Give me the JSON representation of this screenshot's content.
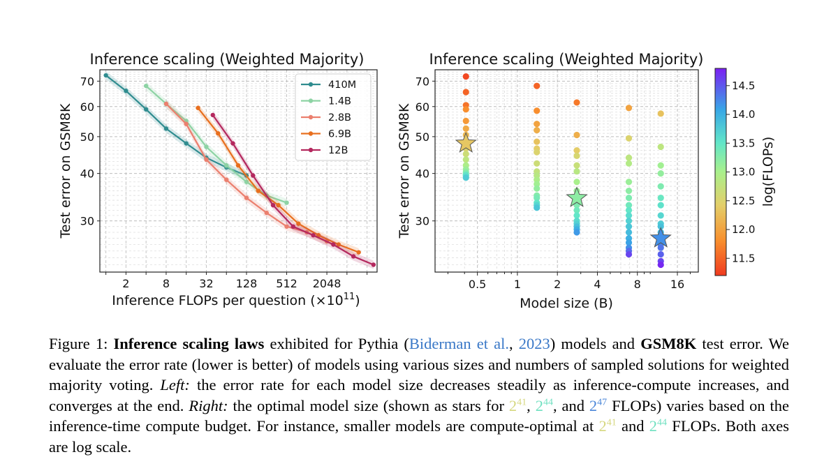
{
  "chart_data": [
    {
      "type": "line",
      "title": "Inference scaling (Weighted Majority)",
      "xlabel": "Inference FLOPs per question (×10",
      "xlabel_sup": "11",
      "xlabel_end": ")",
      "ylabel": "Test error on GSM8K",
      "xscale": "log2",
      "yscale": "log",
      "xlim_log2": [
        -0.3,
        13.5
      ],
      "ylim": [
        22,
        75
      ],
      "xticks": [
        {
          "v": 2,
          "label": "2"
        },
        {
          "v": 8,
          "label": "8"
        },
        {
          "v": 32,
          "label": "32"
        },
        {
          "v": 128,
          "label": "128"
        },
        {
          "v": 512,
          "label": "512"
        },
        {
          "v": 2048,
          "label": "2048"
        }
      ],
      "yticks": [
        {
          "v": 30,
          "label": "30"
        },
        {
          "v": 40,
          "label": "40"
        },
        {
          "v": 50,
          "label": "50"
        },
        {
          "v": 60,
          "label": "60"
        },
        {
          "v": 70,
          "label": "70"
        }
      ],
      "legend_position": "top-right",
      "series": [
        {
          "name": "410M",
          "color": "#2f8c8f",
          "points": [
            [
              1,
              72.5
            ],
            [
              2,
              66
            ],
            [
              4,
              59
            ],
            [
              8,
              52.5
            ],
            [
              16,
              48
            ],
            [
              32,
              44
            ],
            [
              64,
              41.5
            ],
            [
              128,
              39.5
            ]
          ]
        },
        {
          "name": "1.4B",
          "color": "#8dd3a4",
          "points": [
            [
              4,
              68
            ],
            [
              8,
              61
            ],
            [
              16,
              55
            ],
            [
              32,
              47
            ],
            [
              64,
              42
            ],
            [
              128,
              38
            ],
            [
              256,
              35
            ],
            [
              512,
              33.5
            ]
          ]
        },
        {
          "name": "2.8B",
          "color": "#eb7f6e",
          "points": [
            [
              8,
              61
            ],
            [
              16,
              54
            ],
            [
              32,
              43.5
            ],
            [
              64,
              38.5
            ],
            [
              128,
              34.5
            ],
            [
              256,
              31.5
            ],
            [
              512,
              29
            ],
            [
              1024,
              28
            ],
            [
              2048,
              26.5
            ]
          ]
        },
        {
          "name": "6.9B",
          "color": "#e86f1e",
          "points": [
            [
              24,
              59.5
            ],
            [
              48,
              51
            ],
            [
              96,
              42
            ],
            [
              192,
              36
            ],
            [
              384,
              33
            ],
            [
              768,
              29.5
            ],
            [
              1536,
              27.5
            ],
            [
              3072,
              26
            ],
            [
              6144,
              24.8
            ]
          ]
        },
        {
          "name": "12B",
          "color": "#b4285e",
          "points": [
            [
              40,
              57
            ],
            [
              80,
              48
            ],
            [
              160,
              39.5
            ],
            [
              320,
              33
            ],
            [
              640,
              29
            ],
            [
              1280,
              27.5
            ],
            [
              2560,
              26
            ],
            [
              5120,
              24.2
            ],
            [
              10240,
              23
            ]
          ]
        }
      ]
    },
    {
      "type": "scatter",
      "title": "Inference scaling (Weighted Majority)",
      "xlabel": "Model size (B)",
      "ylabel": "Test error on GSM8K",
      "xscale": "log",
      "yscale": "log",
      "xlim": [
        0.24,
        23
      ],
      "ylim": [
        22,
        75
      ],
      "xticks": [
        {
          "v": 0.5,
          "label": "0.5"
        },
        {
          "v": 1,
          "label": "1"
        },
        {
          "v": 2,
          "label": "2"
        },
        {
          "v": 4,
          "label": "4"
        },
        {
          "v": 8,
          "label": "8"
        },
        {
          "v": 16,
          "label": "16"
        }
      ],
      "yticks": [
        {
          "v": 30,
          "label": "30"
        },
        {
          "v": 40,
          "label": "40"
        },
        {
          "v": 50,
          "label": "50"
        },
        {
          "v": 60,
          "label": "60"
        },
        {
          "v": 70,
          "label": "70"
        }
      ],
      "colorbar": {
        "label": "log(FLOPs)",
        "range": [
          11.2,
          14.8
        ],
        "ticks": [
          11.5,
          12.0,
          12.5,
          13.0,
          13.5,
          14.0,
          14.5
        ],
        "tick_labels": [
          "11.5",
          "12.0",
          "12.5",
          "13.0",
          "13.5",
          "14.0",
          "14.5"
        ],
        "colormap": "rainbow"
      },
      "groups": [
        {
          "size": 0.41,
          "points": [
            [
              72,
              11.3
            ],
            [
              65.5,
              11.5
            ],
            [
              60.5,
              11.6
            ],
            [
              59,
              11.8
            ],
            [
              55,
              11.9
            ],
            [
              52.5,
              12.05
            ],
            [
              50.5,
              12.2
            ],
            [
              48.5,
              12.35
            ],
            [
              46.5,
              12.5
            ],
            [
              45,
              12.65
            ],
            [
              43.5,
              12.8
            ],
            [
              42,
              12.95
            ],
            [
              41,
              13.1
            ],
            [
              40.3,
              13.25
            ],
            [
              39.8,
              13.4
            ],
            [
              39.5,
              13.55
            ],
            [
              39,
              13.75
            ]
          ]
        },
        {
          "size": 1.4,
          "points": [
            [
              68,
              11.5
            ],
            [
              58.5,
              11.8
            ],
            [
              54,
              12.0
            ],
            [
              52,
              12.1
            ],
            [
              48.5,
              12.3
            ],
            [
              46.5,
              12.4
            ],
            [
              45.5,
              12.5
            ],
            [
              42.5,
              12.65
            ],
            [
              40.5,
              12.75
            ],
            [
              39.5,
              12.85
            ],
            [
              38.5,
              12.95
            ],
            [
              37.5,
              13.05
            ],
            [
              36.5,
              13.15
            ],
            [
              35,
              13.25
            ],
            [
              34.5,
              13.35
            ],
            [
              33.5,
              13.5
            ],
            [
              33,
              13.65
            ],
            [
              32.5,
              13.8
            ]
          ]
        },
        {
          "size": 2.8,
          "points": [
            [
              61.5,
              11.65
            ],
            [
              50.5,
              12.1
            ],
            [
              46,
              12.4
            ],
            [
              44.5,
              12.55
            ],
            [
              42,
              12.7
            ],
            [
              40.5,
              12.85
            ],
            [
              38,
              13.0
            ],
            [
              36,
              13.1
            ],
            [
              34.5,
              13.2
            ],
            [
              33,
              13.3
            ],
            [
              32,
              13.4
            ],
            [
              31,
              13.5
            ],
            [
              30,
              13.6
            ],
            [
              29.5,
              13.7
            ],
            [
              29,
              13.85
            ],
            [
              28.5,
              14.0
            ],
            [
              28,
              14.15
            ]
          ]
        },
        {
          "size": 6.9,
          "points": [
            [
              59.5,
              12.0
            ],
            [
              49.5,
              12.5
            ],
            [
              44,
              12.8
            ],
            [
              42.5,
              12.9
            ],
            [
              38,
              13.1
            ],
            [
              36,
              13.2
            ],
            [
              34.5,
              13.3
            ],
            [
              33,
              13.4
            ],
            [
              32,
              13.5
            ],
            [
              31,
              13.6
            ],
            [
              30,
              13.7
            ],
            [
              29,
              13.8
            ],
            [
              28,
              13.9
            ],
            [
              27,
              14.0
            ],
            [
              26.3,
              14.1
            ],
            [
              25.5,
              14.2
            ],
            [
              25,
              14.4
            ],
            [
              24.5,
              14.6
            ]
          ]
        },
        {
          "size": 12,
          "points": [
            [
              57.5,
              12.3
            ],
            [
              47,
              12.8
            ],
            [
              42,
              13.05
            ],
            [
              40,
              13.15
            ],
            [
              37,
              13.3
            ],
            [
              34.5,
              13.45
            ],
            [
              33,
              13.55
            ],
            [
              31,
              13.65
            ],
            [
              29.5,
              13.75
            ],
            [
              29,
              13.85
            ],
            [
              28,
              13.95
            ],
            [
              27.5,
              14.05
            ],
            [
              26.5,
              14.15
            ],
            [
              26,
              14.25
            ],
            [
              25.5,
              14.35
            ],
            [
              24.5,
              14.45
            ],
            [
              23.5,
              14.6
            ],
            [
              23,
              14.75
            ]
          ]
        }
      ],
      "stars": [
        {
          "size": 0.41,
          "error": 48,
          "log_flops": 12.35
        },
        {
          "size": 2.8,
          "error": 34.5,
          "log_flops": 13.2
        },
        {
          "size": 12,
          "error": 27,
          "log_flops": 14.2
        }
      ]
    }
  ],
  "caption": {
    "fig_label": "Figure 1:",
    "bold_lead": "Inference scaling laws",
    "t1": " exhibited for Pythia (",
    "cite_author": "Biderman et al.",
    "cite_sep": ", ",
    "cite_year": "2023",
    "t2": ") models and ",
    "bold_gsm": "GSM8K",
    "t3": " test error. We evaluate the error rate (lower is better) of models using various sizes and numbers of sampled solutions for weighted majority voting. ",
    "left_label": "Left:",
    "t4": " the error rate for each model size decreases steadily as inference-compute increases, and converges at the end. ",
    "right_label": "Right:",
    "t5": " the optimal model size (shown as stars for ",
    "pow_base": "2",
    "exp1": "41",
    "comma1": ", ",
    "exp2": "44",
    "t6": ", and ",
    "exp3": "47",
    "t7": " FLOPs) varies based on the inference-time compute budget. For instance, smaller models are compute-optimal at ",
    "exp4": "41",
    "t8": " and ",
    "exp5": "44",
    "t9": " FLOPs. Both axes are ",
    "log_word": "log",
    "t10": " scale.",
    "colors": {
      "c41": "#d5d77f",
      "c44": "#6fe0c0",
      "c47": "#4a86d8"
    }
  }
}
